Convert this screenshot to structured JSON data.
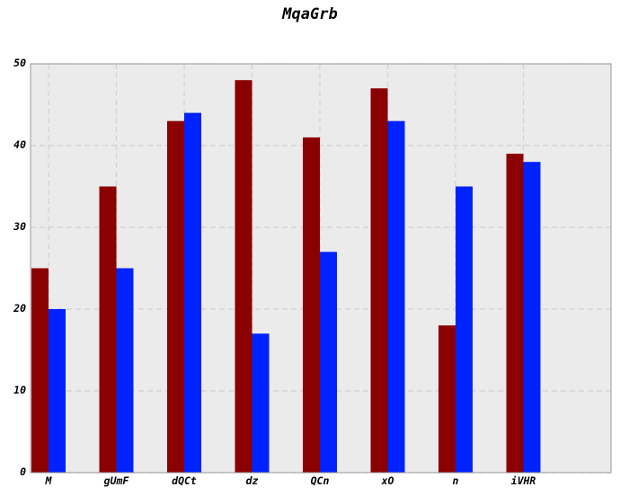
{
  "chart_data": {
    "type": "bar",
    "title": "MqaGrb",
    "xlabel": "",
    "ylabel": "",
    "categories": [
      "M",
      "gUmF",
      "dQCt",
      "dz",
      "QCn",
      "xO",
      "n",
      "iVHR"
    ],
    "series": [
      {
        "values": [
          25,
          35,
          43,
          48,
          41,
          47,
          18,
          39
        ],
        "color": "#8b0000"
      },
      {
        "values": [
          20,
          25,
          44,
          17,
          27,
          43,
          35,
          38
        ],
        "color": "#0022ff"
      }
    ],
    "ylim": [
      0,
      50
    ],
    "yticks": [
      0,
      10,
      20,
      30,
      40,
      50
    ],
    "grid": true,
    "plot_background": "#ebebeb",
    "grid_color": "#d0d0d0"
  }
}
